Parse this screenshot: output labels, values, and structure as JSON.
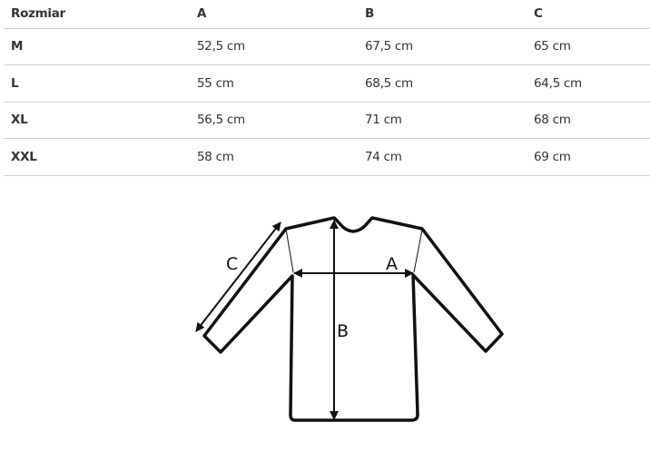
{
  "table": {
    "headers": [
      "Rozmiar",
      "A",
      "B",
      "C"
    ],
    "rows": [
      [
        "M",
        "52,5 cm",
        "67,5 cm",
        "65 cm"
      ],
      [
        "L",
        "55 cm",
        "68,5 cm",
        "64,5 cm"
      ],
      [
        "XL",
        "56,5 cm",
        "71 cm",
        "68 cm"
      ],
      [
        "XXL",
        "58 cm",
        "74 cm",
        "69 cm"
      ]
    ]
  },
  "diagram": {
    "label_a": "A",
    "label_b": "B",
    "label_c": "C"
  }
}
